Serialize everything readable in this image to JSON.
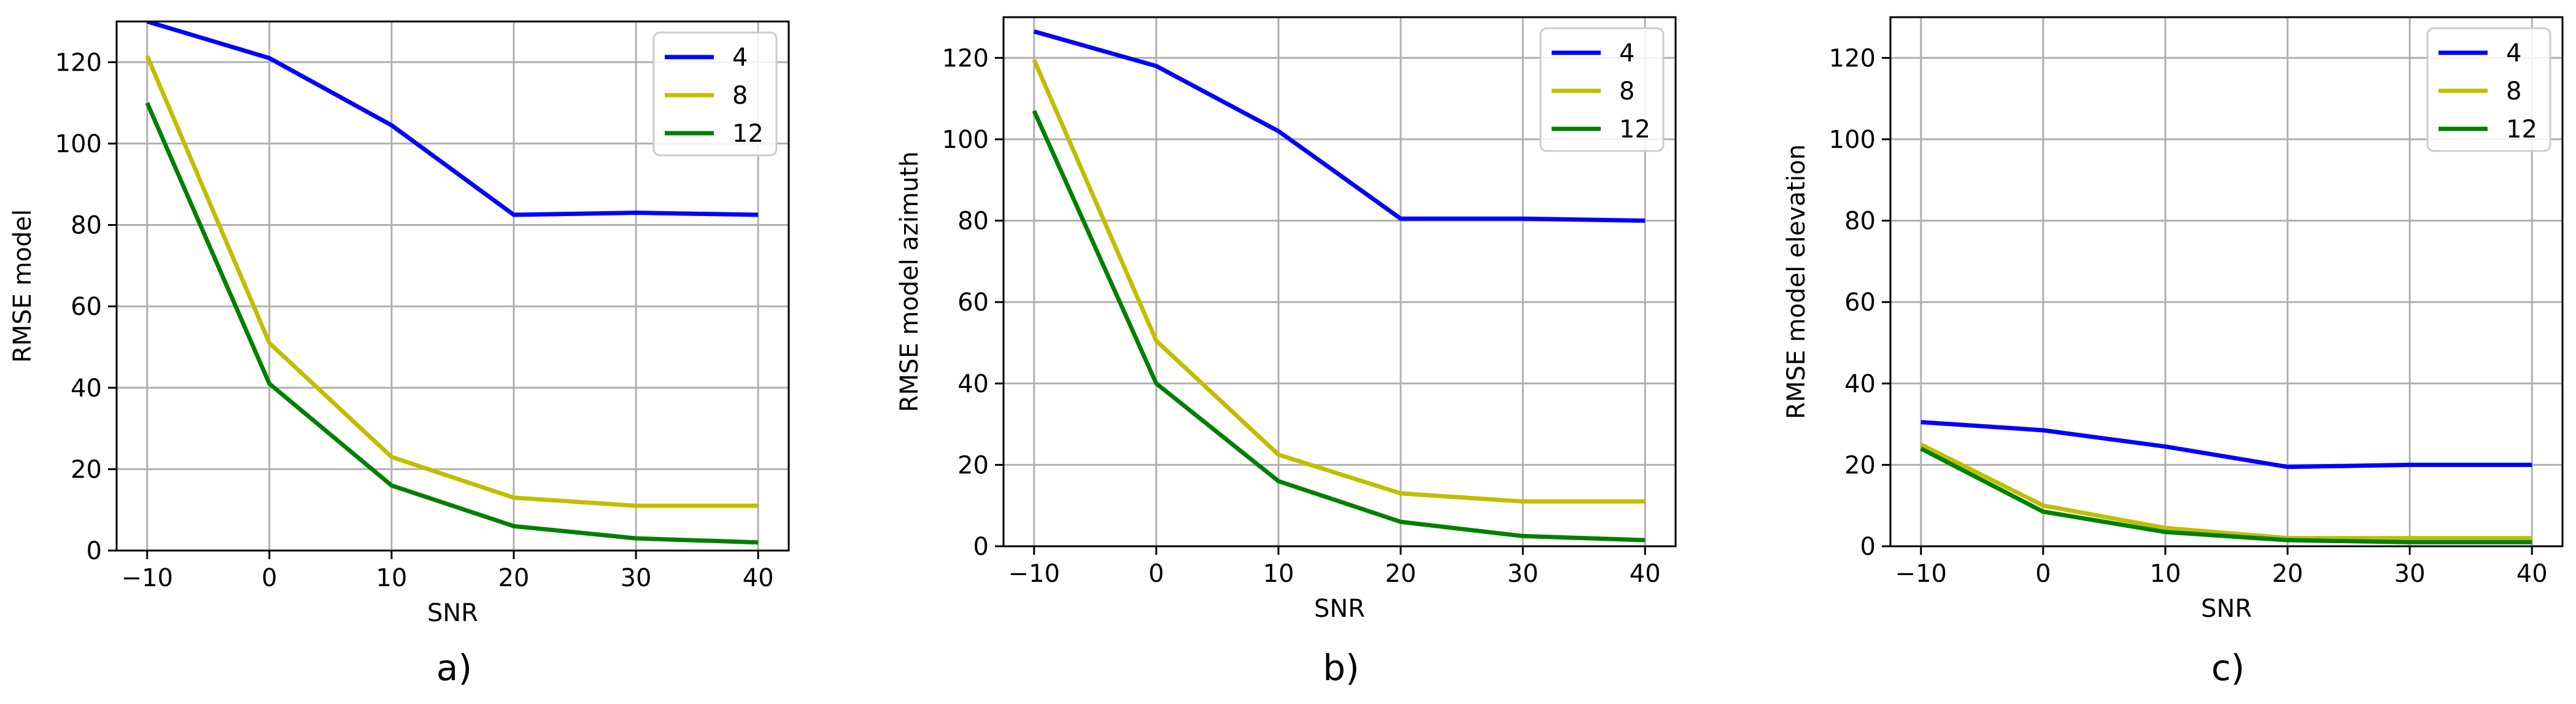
{
  "colors": {
    "s4": "#0000ff",
    "s8": "#bfbf00",
    "s12": "#008000",
    "grid": "#b0b0b0"
  },
  "chart_data": [
    {
      "type": "line",
      "panel_label": "a)",
      "xlabel": "SNR",
      "ylabel": "RMSE model",
      "x": [
        -10,
        0,
        10,
        20,
        30,
        40
      ],
      "xticks": [
        "−10",
        "0",
        "10",
        "20",
        "30",
        "40"
      ],
      "xlim": [
        -12.5,
        42.5
      ],
      "yticks": [
        "0",
        "20",
        "40",
        "60",
        "80",
        "100",
        "120"
      ],
      "ylim": [
        0,
        130
      ],
      "grid": true,
      "legend_position": "top-right",
      "series": [
        {
          "name": "4",
          "color": "#0000ff",
          "values": [
            130,
            121,
            104.5,
            82.5,
            83,
            82.5
          ]
        },
        {
          "name": "8",
          "color": "#bfbf00",
          "values": [
            121.5,
            51,
            23,
            13,
            11,
            11
          ]
        },
        {
          "name": "12",
          "color": "#008000",
          "values": [
            110,
            41,
            16,
            6,
            3,
            2
          ]
        }
      ]
    },
    {
      "type": "line",
      "panel_label": "b)",
      "xlabel": "SNR",
      "ylabel": "RMSE model azimuth",
      "x": [
        -10,
        0,
        10,
        20,
        30,
        40
      ],
      "xticks": [
        "−10",
        "0",
        "10",
        "20",
        "30",
        "40"
      ],
      "xlim": [
        -12.5,
        42.5
      ],
      "yticks": [
        "0",
        "20",
        "40",
        "60",
        "80",
        "100",
        "120"
      ],
      "ylim": [
        0,
        130
      ],
      "grid": true,
      "legend_position": "top-right",
      "series": [
        {
          "name": "4",
          "color": "#0000ff",
          "values": [
            126.5,
            118,
            102,
            80.5,
            80.5,
            80
          ]
        },
        {
          "name": "8",
          "color": "#bfbf00",
          "values": [
            119.5,
            50.5,
            22.5,
            13,
            11,
            11
          ]
        },
        {
          "name": "12",
          "color": "#008000",
          "values": [
            107,
            40,
            16,
            6,
            2.5,
            1.5
          ]
        }
      ]
    },
    {
      "type": "line",
      "panel_label": "c)",
      "xlabel": "SNR",
      "ylabel": "RMSE model elevation",
      "x": [
        -10,
        0,
        10,
        20,
        30,
        40
      ],
      "xticks": [
        "−10",
        "0",
        "10",
        "20",
        "30",
        "40"
      ],
      "xlim": [
        -12.5,
        42.5
      ],
      "yticks": [
        "0",
        "20",
        "40",
        "60",
        "80",
        "100",
        "120"
      ],
      "ylim": [
        0,
        130
      ],
      "grid": true,
      "legend_position": "top-right",
      "series": [
        {
          "name": "4",
          "color": "#0000ff",
          "values": [
            30.5,
            28.5,
            24.5,
            19.5,
            20,
            20
          ]
        },
        {
          "name": "8",
          "color": "#bfbf00",
          "values": [
            25,
            10,
            4.5,
            2,
            2,
            2
          ]
        },
        {
          "name": "12",
          "color": "#008000",
          "values": [
            24,
            8.5,
            3.5,
            1.5,
            1,
            1
          ]
        }
      ]
    }
  ]
}
